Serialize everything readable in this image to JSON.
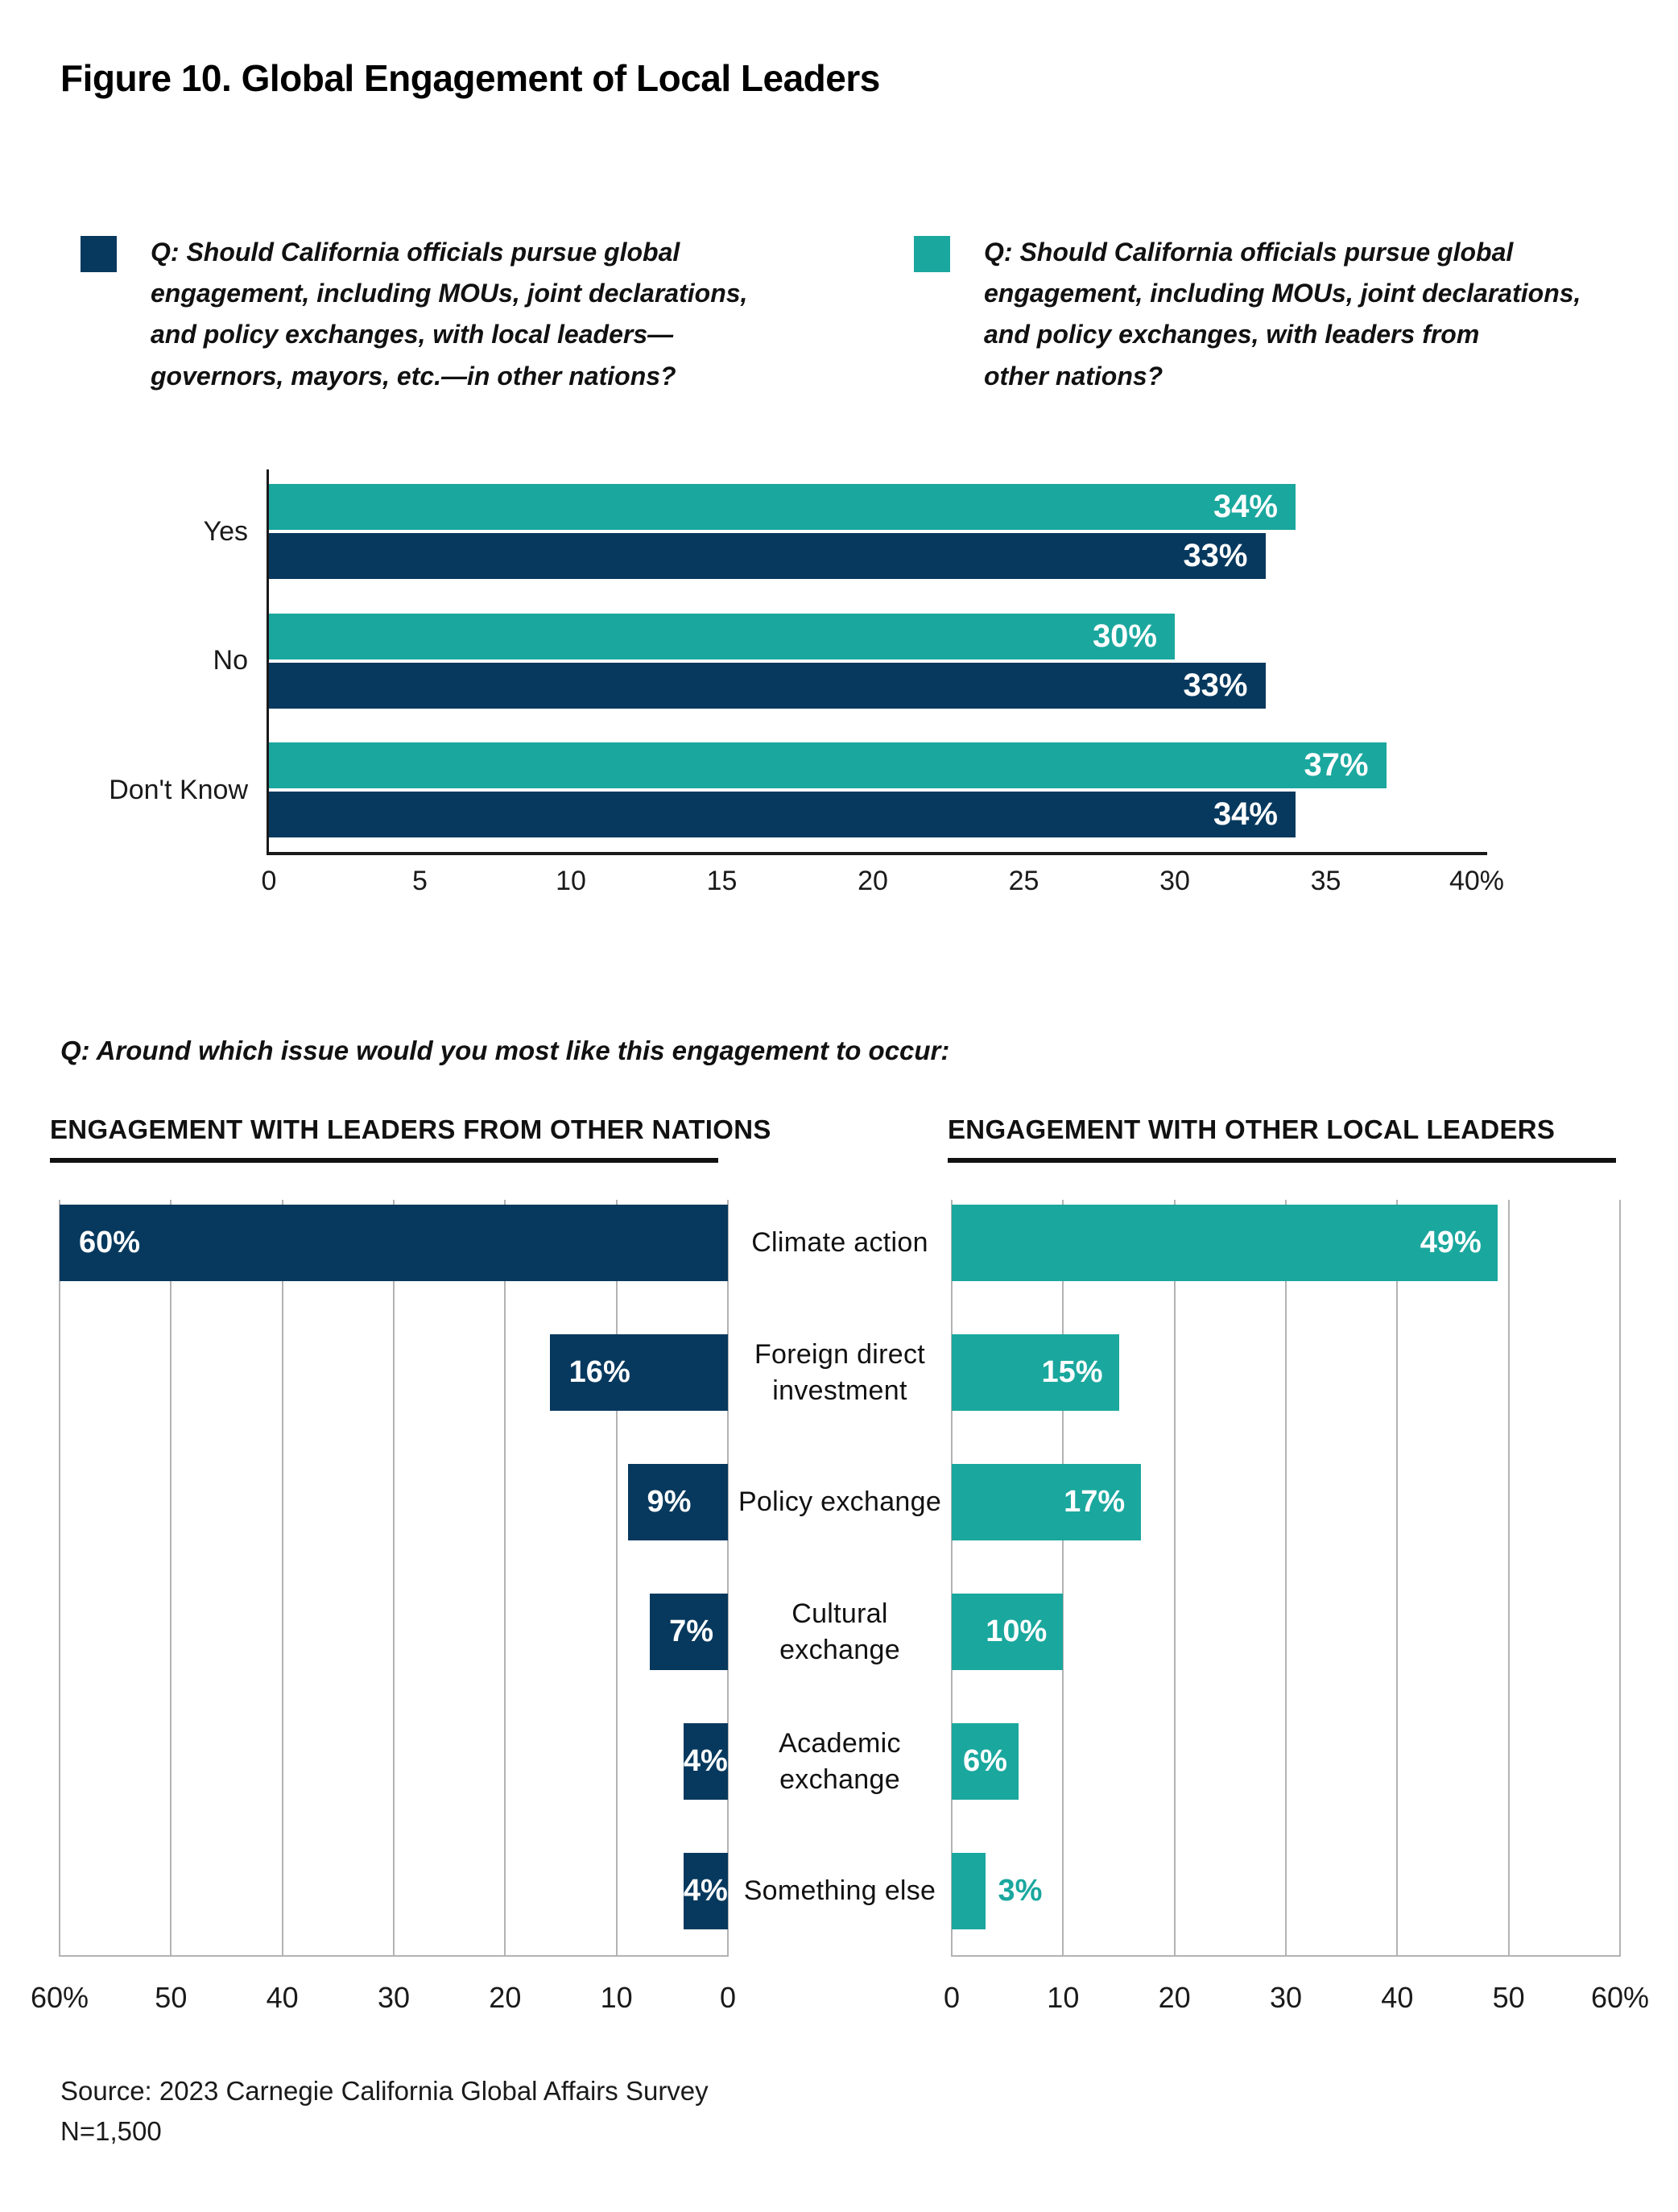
{
  "title": "Figure 10. Global Engagement of Local Leaders",
  "colors": {
    "navy": "#07395E",
    "teal": "#1AA79E",
    "text": "#1a1a1a",
    "grid": "#b3b3b3"
  },
  "legend": [
    {
      "color_key": "navy",
      "lines": [
        "Q: Should California officials pursue global",
        "engagement, including MOUs, joint declarations,",
        "and policy exchanges, with local leaders—",
        "governors, mayors, etc.—in other nations?"
      ]
    },
    {
      "color_key": "teal",
      "lines": [
        "Q: Should California officials pursue global",
        "engagement, including MOUs, joint declarations,",
        "and policy exchanges, with leaders from",
        "other nations?"
      ]
    }
  ],
  "question2": "Q: Around which issue would you most like this engagement to occur:",
  "section_headers": {
    "left": "ENGAGEMENT WITH LEADERS FROM OTHER NATIONS",
    "right": "ENGAGEMENT WITH OTHER LOCAL LEADERS"
  },
  "source": {
    "line1": "Source: 2023 Carnegie California Global Affairs Survey",
    "line2": "N=1,500"
  },
  "chart_data": [
    {
      "id": "response-chart",
      "type": "bar",
      "orientation": "horizontal-grouped",
      "categories": [
        "Yes",
        "No",
        "Don't Know"
      ],
      "series": [
        {
          "name": "with leaders from other nations",
          "color_key": "teal",
          "values": [
            34,
            30,
            37
          ],
          "labels": [
            "34%",
            "30%",
            "37%"
          ]
        },
        {
          "name": "with local leaders in other nations",
          "color_key": "navy",
          "values": [
            33,
            33,
            34
          ],
          "labels": [
            "33%",
            "33%",
            "34%"
          ]
        }
      ],
      "xlim": [
        0,
        40
      ],
      "tick_labels": [
        "0",
        "5",
        "10",
        "15",
        "20",
        "25",
        "30",
        "35",
        "40%"
      ],
      "grid": false,
      "legend_position": "top"
    },
    {
      "id": "issues-leaders-from-other-nations",
      "type": "bar",
      "orientation": "horizontal",
      "direction": "right-to-left",
      "title": "ENGAGEMENT WITH LEADERS FROM OTHER NATIONS",
      "categories": [
        "Climate action",
        "Foreign direct investment",
        "Policy exchange",
        "Cultural exchange",
        "Academic exchange",
        "Something else"
      ],
      "values": [
        60,
        16,
        9,
        7,
        4,
        4
      ],
      "labels": [
        "60%",
        "16%",
        "9%",
        "7%",
        "4%",
        "4%"
      ],
      "color_key": "navy",
      "xlim": [
        0,
        60
      ],
      "tick_labels": [
        "60%",
        "50",
        "40",
        "30",
        "20",
        "10",
        "0"
      ],
      "grid": true
    },
    {
      "id": "issues-other-local-leaders",
      "type": "bar",
      "orientation": "horizontal",
      "direction": "left-to-right",
      "title": "ENGAGEMENT WITH OTHER LOCAL LEADERS",
      "categories": [
        "Climate action",
        "Foreign direct investment",
        "Policy exchange",
        "Cultural exchange",
        "Academic exchange",
        "Something else"
      ],
      "values": [
        49,
        15,
        17,
        10,
        6,
        3
      ],
      "labels": [
        "49%",
        "15%",
        "17%",
        "10%",
        "6%",
        "3%"
      ],
      "color_key": "teal",
      "xlim": [
        0,
        60
      ],
      "tick_labels": [
        "0",
        "10",
        "20",
        "30",
        "40",
        "50",
        "60%"
      ],
      "grid": true
    }
  ]
}
